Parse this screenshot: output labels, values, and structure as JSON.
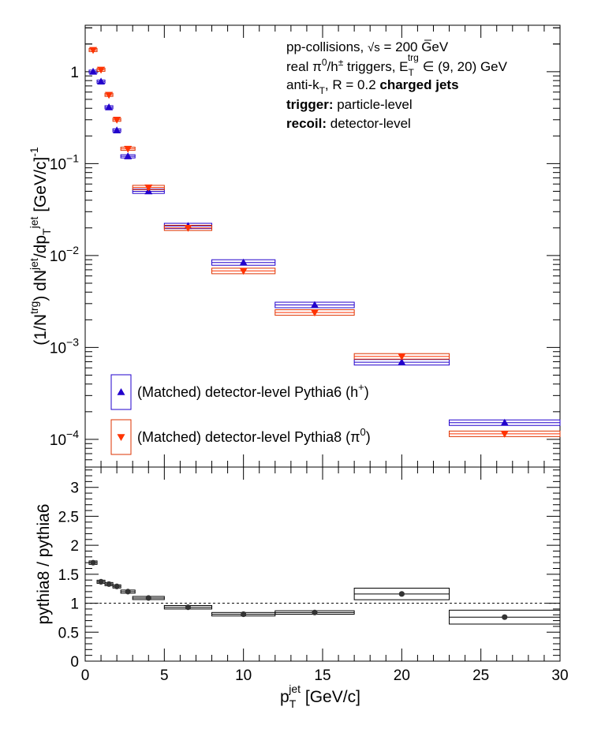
{
  "chart_data": [
    {
      "type": "scatter",
      "panel": "top",
      "y_scale": "log",
      "xlim": [
        0,
        30
      ],
      "ylim": [
        5e-05,
        3.2
      ],
      "ylabel": {
        "a": "(1/N",
        "a_sup": "trg",
        "b": ") dN",
        "b_sup": "jet",
        "c": "/dp",
        "c_sub": "T",
        "c_sup": "jet",
        "d": " [GeV/c]",
        "d_sup": "-1"
      },
      "y_ticks": [
        {
          "value": 1,
          "label": "1"
        },
        {
          "value": 0.1,
          "base": "10",
          "exp": "−1"
        },
        {
          "value": 0.01,
          "base": "10",
          "exp": "−2"
        },
        {
          "value": 0.001,
          "base": "10",
          "exp": "−3"
        },
        {
          "value": 0.0001,
          "base": "10",
          "exp": "−4"
        }
      ],
      "annotations": [
        {
          "key": "line1",
          "parts": [
            "pp-collisions, ",
            "√s",
            " = 200 GeV"
          ]
        },
        {
          "key": "line2",
          "parts": [
            "real π",
            "0",
            "/h",
            "±",
            " triggers, E",
            "T",
            "trg",
            " ∈ (9, 20) GeV"
          ]
        },
        {
          "key": "line3",
          "parts": [
            "anti-k",
            "T",
            ", R = 0.2 ",
            "charged jets"
          ]
        },
        {
          "key": "line4",
          "parts": [
            "trigger:",
            " particle-level"
          ]
        },
        {
          "key": "line5",
          "parts": [
            "recoil:",
            " detector-level"
          ]
        }
      ],
      "series": [
        {
          "name": "(Matched) detector-level Pythia6 (h⁺)",
          "name_main": "(Matched) detector-level Pythia6 (h",
          "name_sup": "+",
          "name_end": ")",
          "marker": "triangle-up",
          "color": "#2200cc",
          "box_color": "#2200cc",
          "points": [
            {
              "x": 0.5,
              "y": 1.0,
              "xerr": 0.25
            },
            {
              "x": 1.0,
              "y": 0.78,
              "xerr": 0.25
            },
            {
              "x": 1.5,
              "y": 0.41,
              "xerr": 0.25
            },
            {
              "x": 2.0,
              "y": 0.23,
              "xerr": 0.25
            },
            {
              "x": 2.7,
              "y": 0.12,
              "xerr": 0.45
            },
            {
              "x": 4.0,
              "y": 0.05,
              "xerr": 1.0
            },
            {
              "x": 6.5,
              "y": 0.021,
              "xerr": 1.5
            },
            {
              "x": 10.0,
              "y": 0.0084,
              "xerr": 2.0
            },
            {
              "x": 14.5,
              "y": 0.0029,
              "xerr": 2.5
            },
            {
              "x": 20.0,
              "y": 0.00069,
              "xerr": 3.0
            },
            {
              "x": 26.5,
              "y": 0.000152,
              "xerr": 3.5
            }
          ]
        },
        {
          "name": "(Matched) detector-level Pythia8 (π⁰)",
          "name_main": "(Matched) detector-level Pythia8 (π",
          "name_sup": "0",
          "name_end": ")",
          "marker": "triangle-down",
          "color": "#ff3300",
          "box_color": "#dd3300",
          "points": [
            {
              "x": 0.5,
              "y": 1.72,
              "xerr": 0.25
            },
            {
              "x": 1.0,
              "y": 1.05,
              "xerr": 0.25
            },
            {
              "x": 1.5,
              "y": 0.56,
              "xerr": 0.25
            },
            {
              "x": 2.0,
              "y": 0.3,
              "xerr": 0.25
            },
            {
              "x": 2.7,
              "y": 0.145,
              "xerr": 0.45
            },
            {
              "x": 4.0,
              "y": 0.055,
              "xerr": 1.0
            },
            {
              "x": 6.5,
              "y": 0.02,
              "xerr": 1.5
            },
            {
              "x": 10.0,
              "y": 0.0068,
              "xerr": 2.0
            },
            {
              "x": 14.5,
              "y": 0.0024,
              "xerr": 2.5
            },
            {
              "x": 20.0,
              "y": 0.0008,
              "xerr": 3.0
            },
            {
              "x": 26.5,
              "y": 0.000115,
              "xerr": 3.5
            }
          ]
        }
      ]
    },
    {
      "type": "scatter",
      "panel": "bottom",
      "xlim": [
        0,
        30
      ],
      "ylim": [
        0,
        3.35
      ],
      "ylabel": "pythia8 / pythia6",
      "xlabel": {
        "main": "p",
        "sub": "T",
        "sup": "jet",
        "unit": " [GeV/c]"
      },
      "x_ticks": [
        "0",
        "5",
        "10",
        "15",
        "20",
        "25",
        "30"
      ],
      "y_ticks": [
        "0",
        "0.5",
        "1",
        "1.5",
        "2",
        "2.5",
        "3"
      ],
      "reference_line": 1.0,
      "series": [
        {
          "name": "",
          "color": "#333333",
          "points": [
            {
              "x": 0.5,
              "y": 1.7,
              "xerr": 0.25,
              "yerr": 0.03
            },
            {
              "x": 1.0,
              "y": 1.37,
              "xerr": 0.25,
              "yerr": 0.025
            },
            {
              "x": 1.5,
              "y": 1.33,
              "xerr": 0.25,
              "yerr": 0.025
            },
            {
              "x": 2.0,
              "y": 1.29,
              "xerr": 0.25,
              "yerr": 0.025
            },
            {
              "x": 2.7,
              "y": 1.2,
              "xerr": 0.45,
              "yerr": 0.02
            },
            {
              "x": 4.0,
              "y": 1.09,
              "xerr": 1.0,
              "yerr": 0.02
            },
            {
              "x": 6.5,
              "y": 0.93,
              "xerr": 1.5,
              "yerr": 0.03
            },
            {
              "x": 10.0,
              "y": 0.81,
              "xerr": 2.0,
              "yerr": 0.03
            },
            {
              "x": 14.5,
              "y": 0.84,
              "xerr": 2.5,
              "yerr": 0.03
            },
            {
              "x": 20.0,
              "y": 1.16,
              "xerr": 3.0,
              "yerr": 0.1
            },
            {
              "x": 26.5,
              "y": 0.76,
              "xerr": 3.5,
              "yerr": 0.12
            }
          ]
        }
      ]
    }
  ]
}
